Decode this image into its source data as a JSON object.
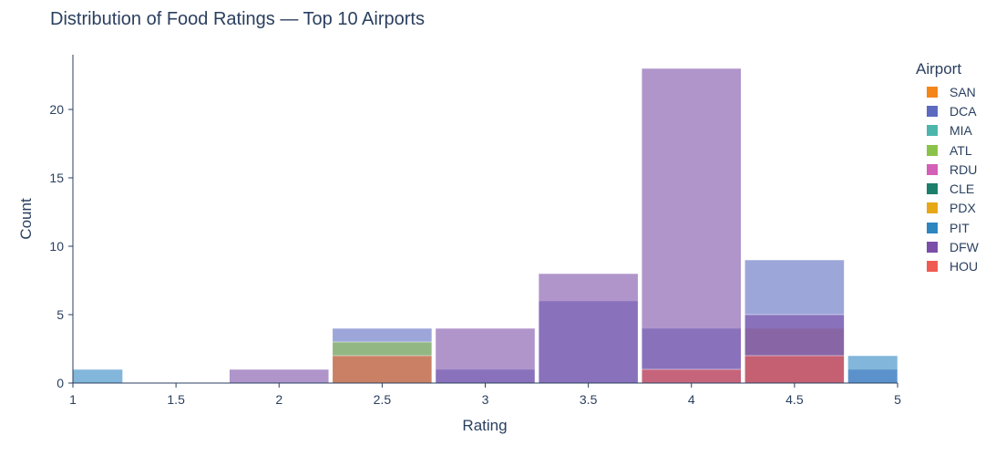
{
  "chart_data": {
    "type": "bar",
    "mode": "overlay",
    "title": "Distribution of Food Ratings — Top 10 Airports",
    "xlabel": "Rating",
    "ylabel": "Count",
    "xlim": [
      1,
      5
    ],
    "ylim": [
      0,
      24
    ],
    "x_ticks": [
      "1",
      "1.5",
      "2",
      "2.5",
      "3",
      "3.5",
      "4",
      "4.5",
      "5"
    ],
    "y_ticks": [
      "0",
      "5",
      "10",
      "15",
      "20"
    ],
    "legend_title": "Airport",
    "legend_position": "right",
    "bins": [
      {
        "start": 1.0,
        "end": 1.25
      },
      {
        "start": 1.75,
        "end": 2.25
      },
      {
        "start": 2.25,
        "end": 2.75
      },
      {
        "start": 2.75,
        "end": 3.25
      },
      {
        "start": 3.25,
        "end": 3.75
      },
      {
        "start": 3.75,
        "end": 4.25
      },
      {
        "start": 4.25,
        "end": 4.75
      },
      {
        "start": 4.75,
        "end": 5.0
      }
    ],
    "series": [
      {
        "name": "SAN",
        "color": "#F58518",
        "values": [
          0,
          0,
          0,
          0,
          0,
          0,
          4,
          0
        ]
      },
      {
        "name": "DCA",
        "color": "#5C6BC0",
        "values": [
          0,
          0,
          4,
          1,
          6,
          4,
          9,
          1
        ]
      },
      {
        "name": "MIA",
        "color": "#4DB6AC",
        "values": [
          0,
          0,
          0,
          0,
          0,
          0,
          0,
          0
        ]
      },
      {
        "name": "ATL",
        "color": "#8BC34A",
        "values": [
          0,
          0,
          3,
          0,
          0,
          0,
          0,
          0
        ]
      },
      {
        "name": "RDU",
        "color": "#D35FB7",
        "values": [
          0,
          0,
          0,
          0,
          0,
          0,
          0,
          0
        ]
      },
      {
        "name": "CLE",
        "color": "#1B7F6B",
        "values": [
          0,
          0,
          0,
          0,
          0,
          0,
          0,
          0
        ]
      },
      {
        "name": "PDX",
        "color": "#E6A817",
        "values": [
          0,
          0,
          0,
          0,
          0,
          0,
          0,
          0
        ]
      },
      {
        "name": "PIT",
        "color": "#2E86C1",
        "values": [
          1,
          0,
          0,
          0,
          0,
          0,
          0,
          2
        ]
      },
      {
        "name": "DFW",
        "color": "#7B4FA8",
        "values": [
          0,
          1,
          0,
          4,
          8,
          23,
          5,
          0
        ]
      },
      {
        "name": "HOU",
        "color": "#EF5B52",
        "values": [
          0,
          0,
          2,
          0,
          0,
          1,
          2,
          0
        ]
      }
    ]
  }
}
